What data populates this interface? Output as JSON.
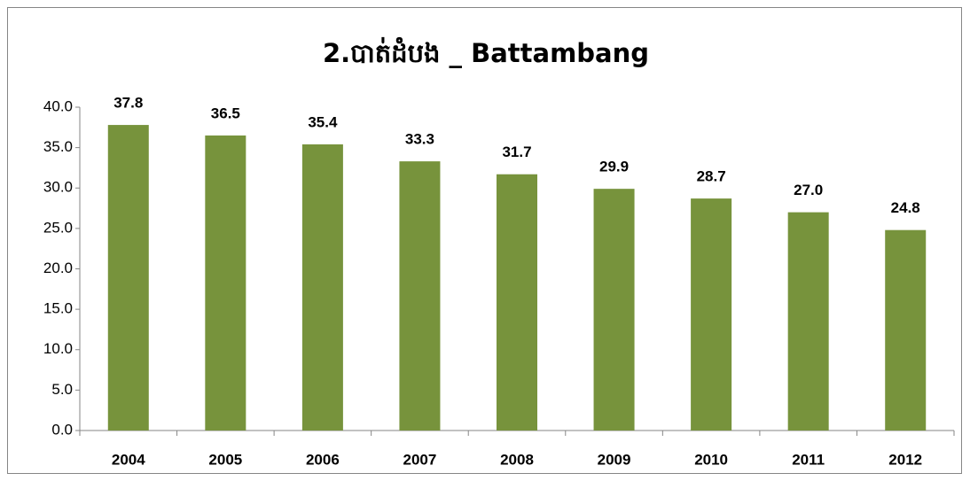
{
  "chart_data": {
    "type": "bar",
    "title": "2.បាត់ដំបង _ Battambang",
    "categories": [
      "2004",
      "2005",
      "2006",
      "2007",
      "2008",
      "2009",
      "2010",
      "2011",
      "2012"
    ],
    "values": [
      37.8,
      36.5,
      35.4,
      33.3,
      31.7,
      29.9,
      28.7,
      27.0,
      24.8
    ],
    "value_labels": [
      "37.8",
      "36.5",
      "35.4",
      "33.3",
      "31.7",
      "29.9",
      "28.7",
      "27.0",
      "24.8"
    ],
    "color": "#77933c",
    "ylim": [
      0,
      40
    ],
    "yticks": [
      {
        "value": 0,
        "label": "0.0"
      },
      {
        "value": 5,
        "label": "5.0"
      },
      {
        "value": 10,
        "label": "10.0"
      },
      {
        "value": 15,
        "label": "15.0"
      },
      {
        "value": 20,
        "label": "20.0"
      },
      {
        "value": 25,
        "label": "25.0"
      },
      {
        "value": 30,
        "label": "30.0"
      },
      {
        "value": 35,
        "label": "35.0"
      },
      {
        "value": 40,
        "label": "40.0"
      }
    ],
    "grid": false
  }
}
